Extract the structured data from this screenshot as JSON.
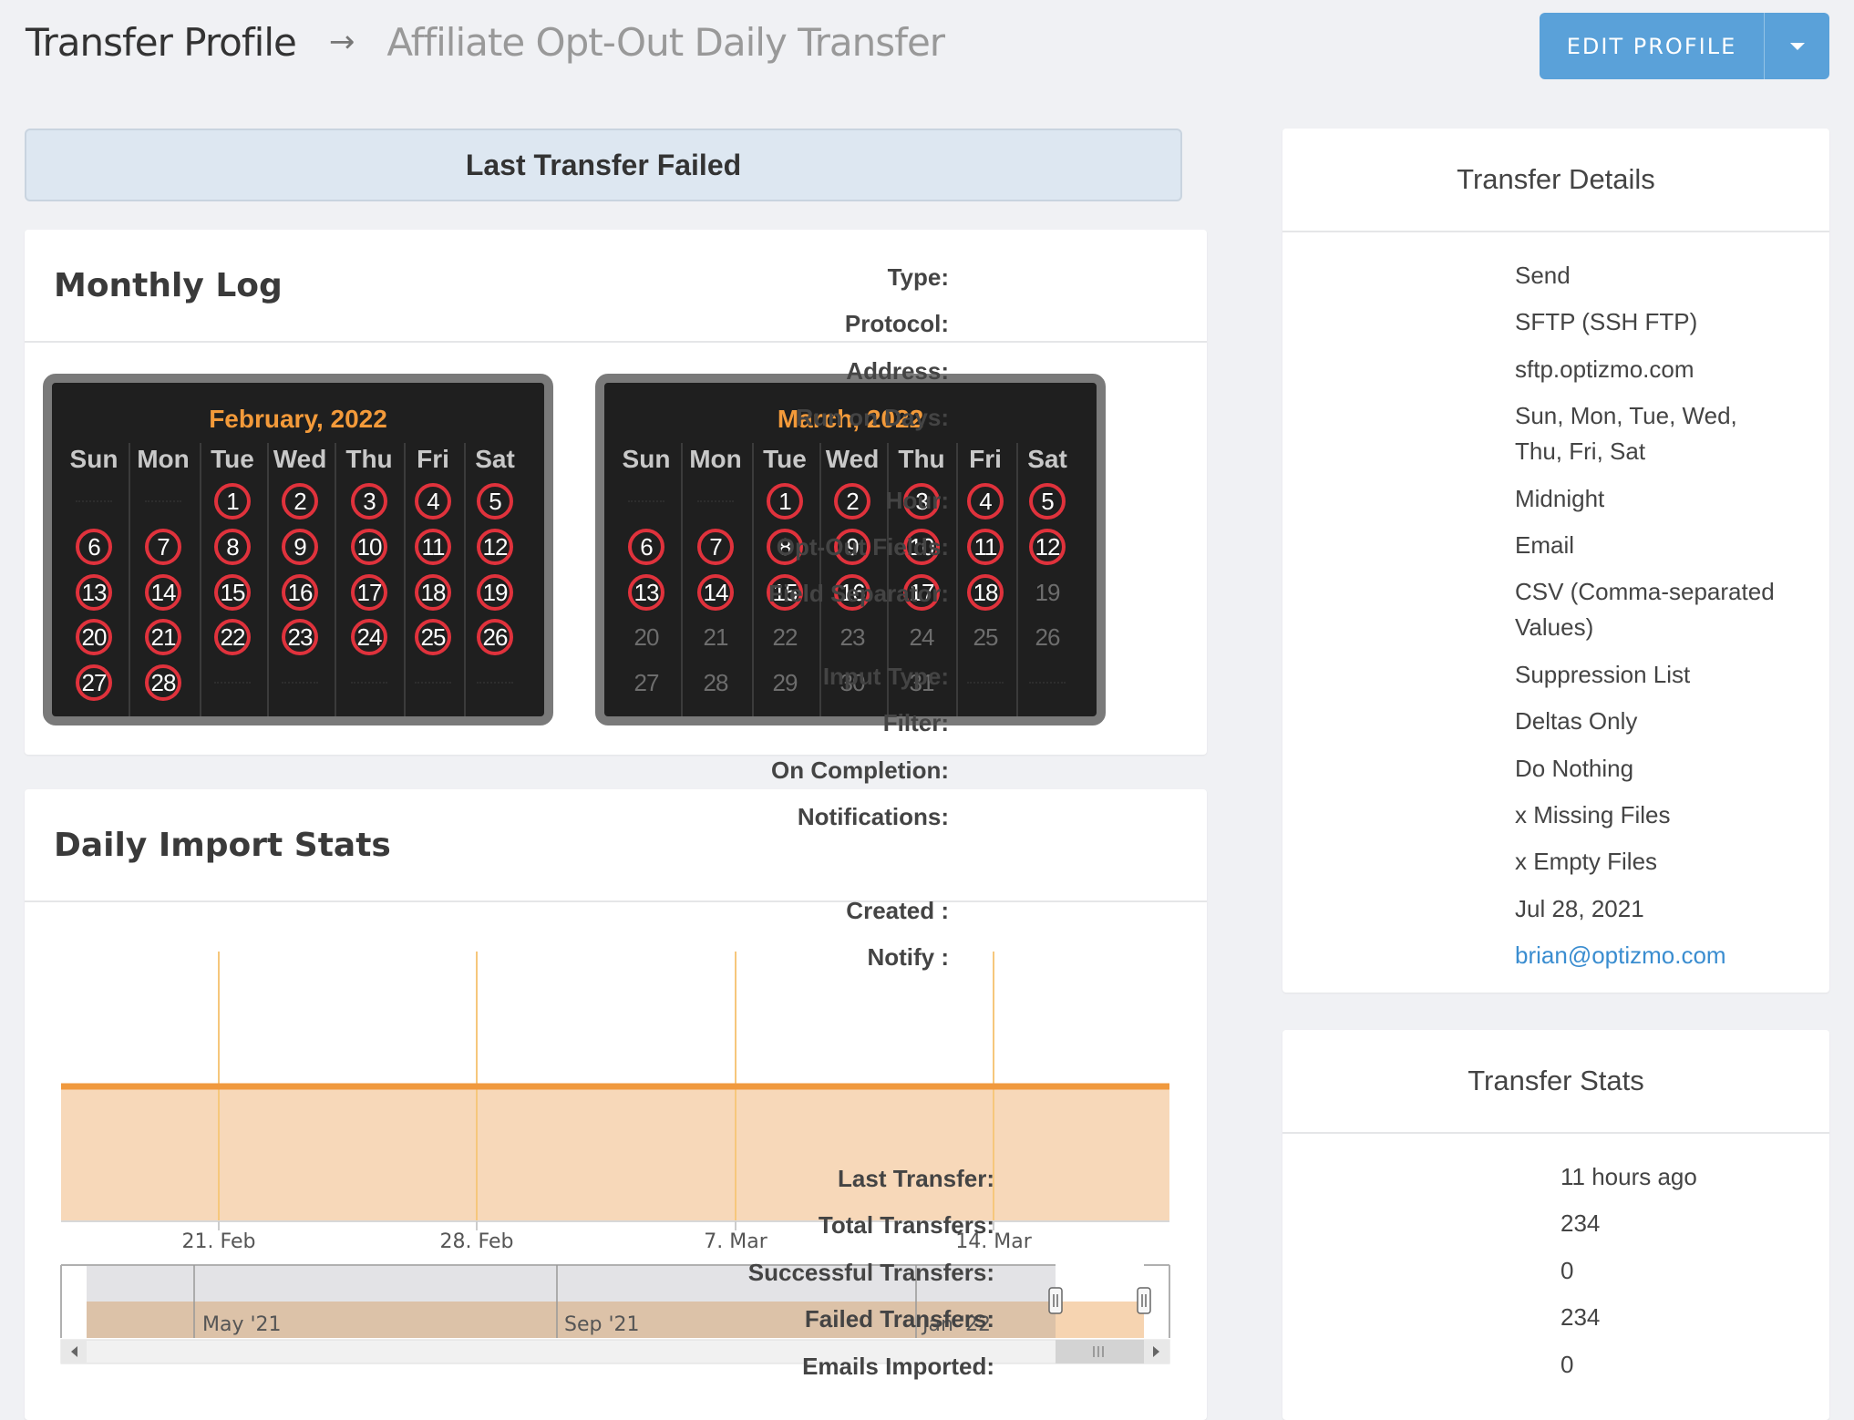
{
  "header": {
    "breadcrumb_root": "Transfer Profile",
    "breadcrumb_sep": "→",
    "breadcrumb_current": "Affiliate Opt-Out Daily Transfer",
    "edit_button": "EDIT PROFILE"
  },
  "alert": {
    "text": "Last Transfer Failed"
  },
  "monthly_log": {
    "title": "Monthly Log",
    "weekdays": [
      "Sun",
      "Mon",
      "Tue",
      "Wed",
      "Thu",
      "Fri",
      "Sat"
    ],
    "calendars": [
      {
        "title": "February, 2022",
        "first_weekday": 2,
        "days_in_month": 28,
        "failed_days": [
          1,
          2,
          3,
          4,
          5,
          6,
          7,
          8,
          9,
          10,
          11,
          12,
          13,
          14,
          15,
          16,
          17,
          18,
          19,
          20,
          21,
          22,
          23,
          24,
          25,
          26,
          27,
          28
        ]
      },
      {
        "title": "March, 2022",
        "first_weekday": 2,
        "days_in_month": 31,
        "failed_days": [
          1,
          2,
          3,
          4,
          5,
          6,
          7,
          8,
          9,
          10,
          11,
          12,
          13,
          14,
          15,
          16,
          17,
          18
        ]
      }
    ]
  },
  "daily_import_stats": {
    "title": "Daily Import Stats",
    "chart_data": {
      "type": "area",
      "x_tick_labels": [
        "21. Feb",
        "28. Feb",
        "7. Mar",
        "14. Mar"
      ],
      "navigator_labels": [
        "May '21",
        "Sep '21",
        "Jan '22"
      ],
      "series_color": "#f0993e",
      "fill_color": "#f6d4b1"
    }
  },
  "transfer_details": {
    "title": "Transfer Details",
    "rows": [
      {
        "label": "Type:",
        "value": "Send"
      },
      {
        "label": "Protocol:",
        "value": "SFTP (SSH FTP)"
      },
      {
        "label": "Address:",
        "value": "sftp.optizmo.com"
      },
      {
        "label": "Run on Days:",
        "value": "Sun, Mon, Tue, Wed, Thu, Fri, Sat"
      },
      {
        "label": "Hour:",
        "value": "Midnight"
      },
      {
        "label": "Opt-Out Fields:",
        "value": "Email"
      },
      {
        "label": "Field Separator:",
        "value": "CSV (Comma-separated Values)"
      },
      {
        "label": "Input Type:",
        "value": "Suppression List"
      },
      {
        "label": "Filter:",
        "value": "Deltas Only"
      },
      {
        "label": "On Completion:",
        "value": "Do Nothing"
      },
      {
        "label": "Notifications:",
        "value": "x Missing Files"
      },
      {
        "label": "",
        "value": "x Empty Files"
      },
      {
        "label": "Created :",
        "value": "Jul 28, 2021"
      },
      {
        "label": "Notify :",
        "value": "brian@optizmo.com"
      }
    ]
  },
  "transfer_stats": {
    "title": "Transfer Stats",
    "rows": [
      {
        "label": "Last Transfer:",
        "value": "11 hours ago"
      },
      {
        "label": "Total Transfers:",
        "value": "234"
      },
      {
        "label": "Successful Transfers:",
        "value": "0"
      },
      {
        "label": "Failed Transfers:",
        "value": "234"
      },
      {
        "label": "Emails Imported:",
        "value": "0"
      }
    ]
  }
}
